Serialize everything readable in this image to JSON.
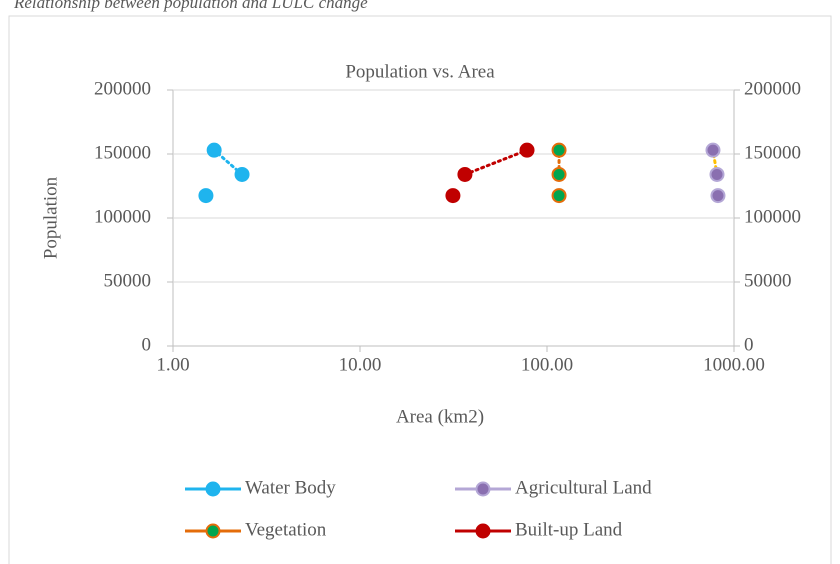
{
  "caption": "Relationship between population and LULC change",
  "chart_data": {
    "type": "scatter",
    "title": "Population vs. Area",
    "x_label": "Area (km2)",
    "y_label": "Population",
    "xscale": "log",
    "xlim": [
      1,
      1000
    ],
    "xticks": [
      {
        "value": 1,
        "label": "1.00"
      },
      {
        "value": 10,
        "label": "10.00"
      },
      {
        "value": 100,
        "label": "100.00"
      },
      {
        "value": 1000,
        "label": "1000.00"
      }
    ],
    "ylim": [
      0,
      200000
    ],
    "yticks": [
      0,
      50000,
      100000,
      150000,
      200000
    ],
    "y2lim": [
      0,
      200000
    ],
    "y2ticks": [
      0,
      50000,
      100000,
      150000,
      200000
    ],
    "grid": true,
    "legend": "bottom",
    "series": [
      {
        "name": "Water Body",
        "color": "#1fb4ee",
        "edge": "#1fb4ee",
        "line_color": "#1fb4ee",
        "x": [
          1.5,
          2.34,
          1.66
        ],
        "values": [
          117500,
          134000,
          153000
        ]
      },
      {
        "name": "Agricultural Land",
        "color": "#8a6fb0",
        "edge": "#b4a7d6",
        "line_color": "#ffc000",
        "x": [
          821,
          811,
          772
        ],
        "values": [
          117500,
          134000,
          153000
        ]
      },
      {
        "name": "Vegetation",
        "color": "#00a550",
        "edge": "#e46c0a",
        "line_color": "#e46c0a",
        "x": [
          116,
          116,
          116
        ],
        "values": [
          117500,
          134000,
          153000
        ]
      },
      {
        "name": "Built-up Land",
        "color": "#c00000",
        "edge": "#c00000",
        "line_color": "#c00000",
        "x": [
          31.4,
          36.4,
          78.2
        ],
        "values": [
          117500,
          134000,
          153000
        ]
      }
    ]
  }
}
